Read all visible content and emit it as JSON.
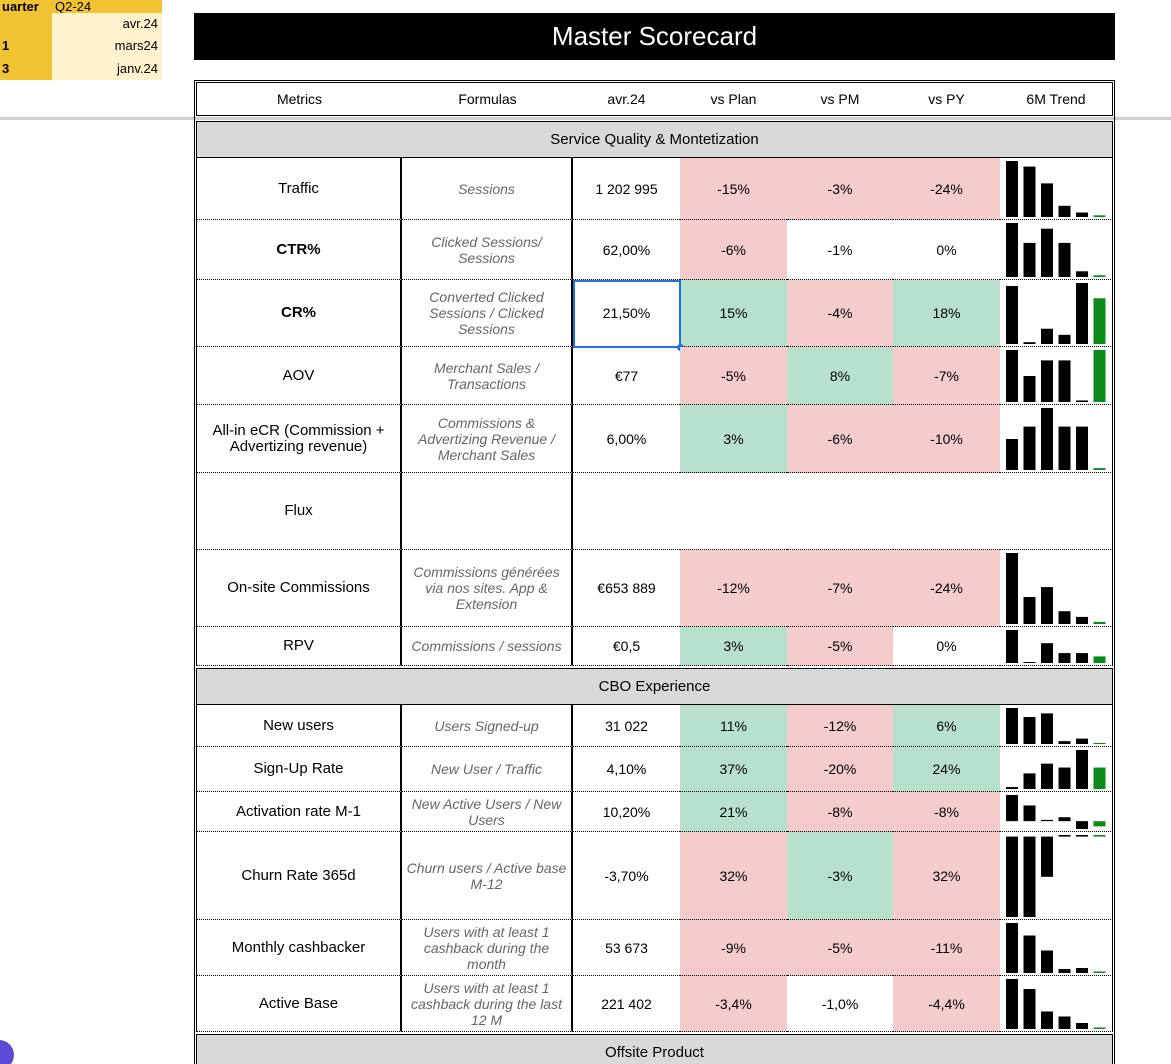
{
  "corner": {
    "rows": [
      {
        "label": "uarter",
        "value": "Q2-24"
      },
      {
        "value": "avr.24"
      },
      {
        "label": "1",
        "value": "mars24"
      },
      {
        "label": "3",
        "value": "janv.24"
      }
    ]
  },
  "title": "Master Scorecard",
  "columns": [
    "Metrics",
    "Formulas",
    "avr.24",
    "vs Plan",
    "vs PM",
    "vs PY",
    "6M Trend"
  ],
  "fill_colors": {
    "red": "#f4cccc",
    "green": "#b7e1cd",
    "none": "#ffffff"
  },
  "trend_colors": [
    "#000000",
    "#0b8a1a"
  ],
  "sections": [
    {
      "title": "Service Quality & Montetization",
      "rows": [
        {
          "metric": "Traffic",
          "formula": "Sessions",
          "value": "1 202 995",
          "vs_plan": "-15%",
          "vs_pm": "-3%",
          "vs_py": "-24%",
          "fills": [
            "red",
            "red",
            "red"
          ],
          "trend": [
            100,
            90,
            60,
            20,
            8,
            3
          ]
        },
        {
          "metric": "CTR%",
          "formula": "Clicked Sessions/ Sessions",
          "value": "62,00%",
          "vs_plan": "-6%",
          "vs_pm": "-1%",
          "vs_py": "0%",
          "fills": [
            "red",
            "none",
            "none"
          ],
          "trend": [
            95,
            60,
            85,
            60,
            10,
            3
          ]
        },
        {
          "metric": "CR%",
          "formula": "Converted Clicked Sessions / Clicked Sessions",
          "value": "21,50%",
          "vs_plan": "15%",
          "vs_pm": "-4%",
          "vs_py": "18%",
          "fills": [
            "green",
            "red",
            "green"
          ],
          "trend": [
            95,
            3,
            25,
            15,
            100,
            75
          ]
        },
        {
          "metric": "AOV",
          "formula": "Merchant Sales / Transactions",
          "value": "€77",
          "vs_plan": "-5%",
          "vs_pm": "8%",
          "vs_py": "-7%",
          "fills": [
            "red",
            "green",
            "red"
          ],
          "trend": [
            100,
            50,
            80,
            80,
            3,
            100
          ]
        },
        {
          "metric": "All-in eCR (Commission + Advertizing revenue)",
          "formula": "Commissions & Advertizing Revenue / Merchant Sales",
          "value": "6,00%",
          "vs_plan": "3%",
          "vs_pm": "-6%",
          "vs_py": "-10%",
          "fills": [
            "green",
            "red",
            "red"
          ],
          "trend": [
            50,
            70,
            100,
            70,
            70,
            3
          ]
        },
        {
          "metric": "Flux"
        },
        {
          "metric": "On-site Commissions",
          "formula": "Commissions générées via nos sites. App & Extension",
          "value": "€653 889",
          "vs_plan": "-12%",
          "vs_pm": "-7%",
          "vs_py": "-24%",
          "fills": [
            "red",
            "red",
            "red"
          ],
          "trend": [
            100,
            38,
            52,
            18,
            10,
            3
          ]
        },
        {
          "metric": "RPV",
          "formula": "Commissions / sessions",
          "value": "€0,5",
          "vs_plan": "3%",
          "vs_pm": "-5%",
          "vs_py": "0%",
          "fills": [
            "green",
            "red",
            "none"
          ],
          "trend": [
            100,
            3,
            60,
            30,
            30,
            20
          ]
        }
      ]
    },
    {
      "title": "CBO Experience",
      "rows": [
        {
          "metric": "New users",
          "formula": "Users Signed-up",
          "value": "31 022",
          "vs_plan": "11%",
          "vs_pm": "-12%",
          "vs_py": "6%",
          "fills": [
            "green",
            "red",
            "green"
          ],
          "trend": [
            100,
            75,
            85,
            8,
            15,
            3
          ]
        },
        {
          "metric": "Sign-Up Rate",
          "formula": "New User / Traffic",
          "value": "4,10%",
          "vs_plan": "37%",
          "vs_pm": "-20%",
          "vs_py": "24%",
          "fills": [
            "green",
            "red",
            "green"
          ],
          "trend": [
            5,
            40,
            65,
            55,
            100,
            55
          ]
        },
        {
          "metric": "Activation rate M-1",
          "formula": "New Active Users / New Users",
          "value": "10,20%",
          "vs_plan": "21%",
          "vs_pm": "-8%",
          "vs_py": "-8%",
          "fills": [
            "green",
            "red",
            "red"
          ],
          "trend": [
            100,
            60,
            5,
            15,
            -30,
            -20
          ]
        },
        {
          "metric": "Churn Rate 365d",
          "formula": "Churn users / Active base M-12",
          "value": "-3,70%",
          "vs_plan": "32%",
          "vs_pm": "-3%",
          "vs_py": "32%",
          "fills": [
            "red",
            "green",
            "red"
          ],
          "trend": [
            -100,
            -100,
            -50,
            2,
            2,
            2
          ]
        },
        {
          "metric": "Monthly cashbacker",
          "formula": "Users with at least 1 cashback during the month",
          "value": "53 673",
          "vs_plan": "-9%",
          "vs_pm": "-5%",
          "vs_py": "-11%",
          "fills": [
            "red",
            "red",
            "red"
          ],
          "trend": [
            100,
            75,
            45,
            8,
            10,
            3
          ]
        },
        {
          "metric": "Active Base",
          "formula": "Users with at least 1 cashback during the last 12 M",
          "value": "221 402",
          "vs_plan": "-3,4%",
          "vs_pm": "-1,0%",
          "vs_py": "-4,4%",
          "fills": [
            "red",
            "none",
            "red"
          ],
          "trend": [
            100,
            80,
            35,
            25,
            12,
            3
          ]
        }
      ]
    },
    {
      "title": "Offsite Product",
      "rows": []
    }
  ]
}
